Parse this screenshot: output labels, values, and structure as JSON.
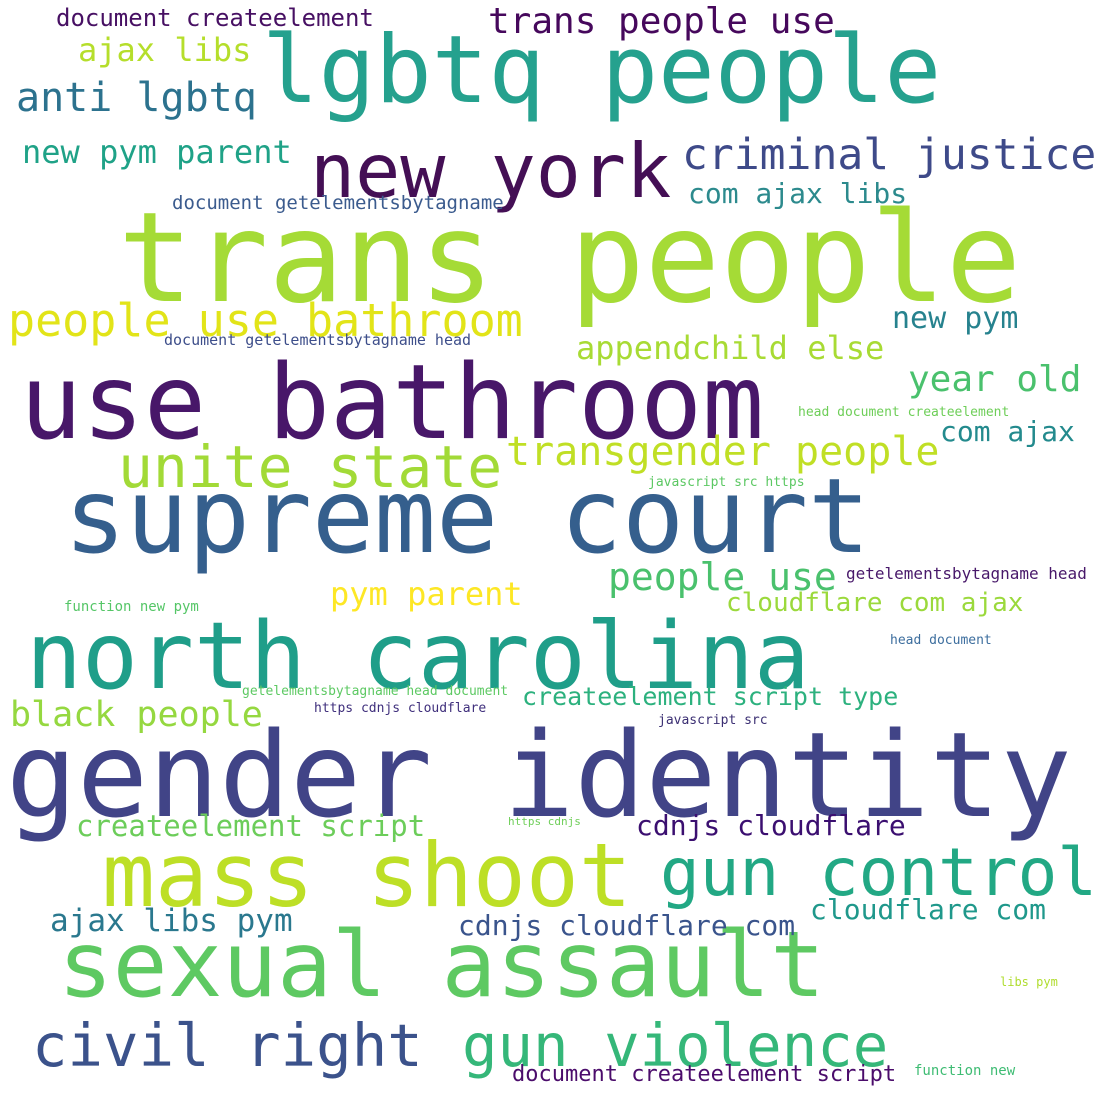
{
  "words": [
    {
      "text": "trans people",
      "color": "#a5db36"
    },
    {
      "text": "gender identity",
      "color": "#414487"
    },
    {
      "text": "use bathroom",
      "color": "#481769"
    },
    {
      "text": "supreme court",
      "color": "#355f8d"
    },
    {
      "text": "lgbtq people",
      "color": "#25a18e"
    },
    {
      "text": "north carolina",
      "color": "#1f9e89"
    },
    {
      "text": "sexual assault",
      "color": "#5ec962"
    },
    {
      "text": "mass shoot",
      "color": "#bddf26"
    },
    {
      "text": "new york",
      "color": "#440f55"
    },
    {
      "text": "civil right",
      "color": "#3b528b"
    },
    {
      "text": "gun violence",
      "color": "#35b779"
    },
    {
      "text": "gun control",
      "color": "#22a884"
    },
    {
      "text": "unite state",
      "color": "#a2da37"
    },
    {
      "text": "criminal justice",
      "color": "#3e4a89"
    },
    {
      "text": "people use bathroom",
      "color": "#e2e418"
    },
    {
      "text": "transgender people",
      "color": "#c0df25"
    },
    {
      "text": "trans people use",
      "color": "#46085c"
    },
    {
      "text": "anti lgbtq",
      "color": "#2c728e"
    },
    {
      "text": "appendchild else",
      "color": "#a8db34"
    },
    {
      "text": "year old",
      "color": "#4ac16d"
    },
    {
      "text": "people use",
      "color": "#4ac16d"
    },
    {
      "text": "new pym parent",
      "color": "#1fa287"
    },
    {
      "text": "black people",
      "color": "#95d840"
    },
    {
      "text": "ajax libs",
      "color": "#b5de2b"
    },
    {
      "text": "pym parent",
      "color": "#fde725"
    },
    {
      "text": "createelement script",
      "color": "#6ccd5a"
    },
    {
      "text": "cdnjs cloudflare",
      "color": "#3b0f70"
    },
    {
      "text": "ajax libs pym",
      "color": "#2a788e"
    },
    {
      "text": "cdnjs cloudflare com",
      "color": "#3a548c"
    },
    {
      "text": "cloudflare com",
      "color": "#1f988b"
    },
    {
      "text": "com ajax libs",
      "color": "#2c8a8d"
    },
    {
      "text": "new pym",
      "color": "#26828e"
    },
    {
      "text": "com ajax",
      "color": "#238a8d"
    },
    {
      "text": "cloudflare com ajax",
      "color": "#9bd93c"
    },
    {
      "text": "createelement script type",
      "color": "#2cb17e"
    },
    {
      "text": "document createelement",
      "color": "#471063"
    },
    {
      "text": "document createelement script",
      "color": "#4b0c6b"
    },
    {
      "text": "document getelementsbytagname",
      "color": "#3b5b8e"
    },
    {
      "text": "document getelementsbytagname head",
      "color": "#3d4e8a"
    },
    {
      "text": "getelementsbytagname head",
      "color": "#48186a"
    },
    {
      "text": "head document createelement",
      "color": "#6ece58"
    },
    {
      "text": "javascript src https",
      "color": "#5cc863"
    },
    {
      "text": "function new pym",
      "color": "#55c667"
    },
    {
      "text": "head document",
      "color": "#3d6e9e"
    },
    {
      "text": "getelementsbytagname head document",
      "color": "#5dc963"
    },
    {
      "text": "https cdnjs cloudflare",
      "color": "#3f2f7c"
    },
    {
      "text": "javascript src",
      "color": "#3b2f73"
    },
    {
      "text": "https cdnjs",
      "color": "#6ece58"
    },
    {
      "text": "libs pym",
      "color": "#b0dd2f"
    },
    {
      "text": "function new",
      "color": "#3ebc73"
    }
  ]
}
